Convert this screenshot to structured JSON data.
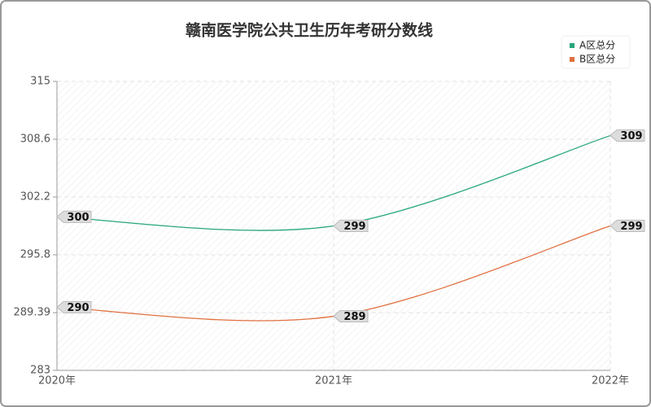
{
  "chart_data": {
    "type": "line",
    "title": "赣南医学院公共卫生历年考研分数线",
    "categories": [
      "2020年",
      "2021年",
      "2022年"
    ],
    "series": [
      {
        "name": "A区总分",
        "color": "#26a67c",
        "values": [
          300,
          299,
          309
        ]
      },
      {
        "name": "B区总分",
        "color": "#e0703f",
        "values": [
          290,
          289,
          299
        ]
      }
    ],
    "ylim": [
      283,
      315
    ],
    "yticks": [
      283,
      289.39,
      295.8,
      302.2,
      308.6,
      315
    ],
    "grid": true,
    "legend": "top-right"
  }
}
